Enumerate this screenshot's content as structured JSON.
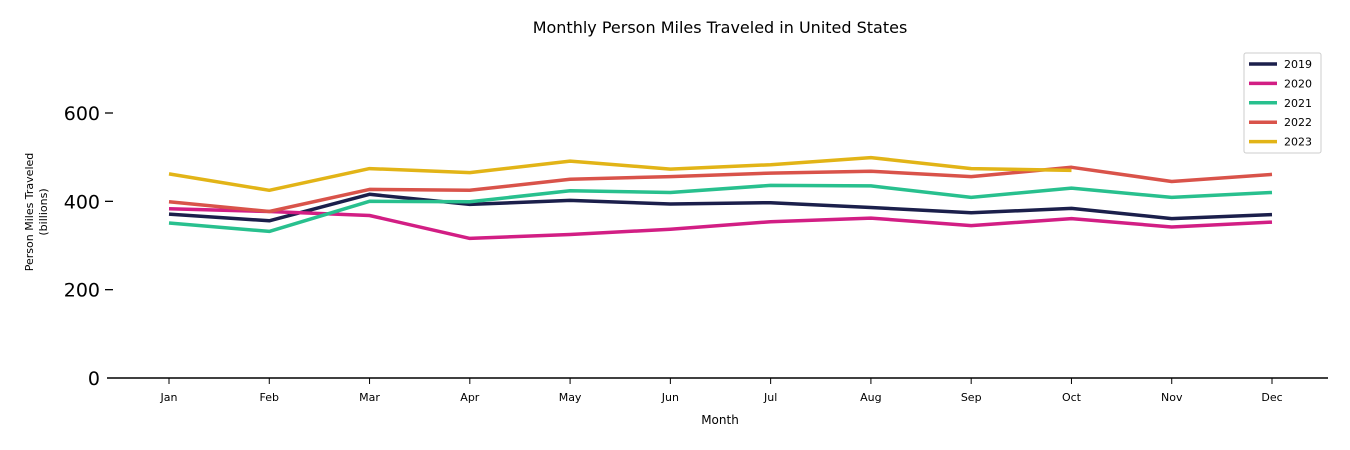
{
  "chart_data": {
    "type": "line",
    "title": "Monthly Person Miles Traveled in United States",
    "xlabel": "Month",
    "ylabel_lines": [
      "Person Miles Traveled",
      "(billions)"
    ],
    "categories": [
      "Jan",
      "Feb",
      "Mar",
      "Apr",
      "May",
      "Jun",
      "Jul",
      "Aug",
      "Sep",
      "Oct",
      "Nov",
      "Dec"
    ],
    "yticks": [
      0,
      200,
      400,
      600
    ],
    "ylim": [
      0,
      750
    ],
    "grid": false,
    "legend_position": "top-right",
    "series": [
      {
        "name": "2019",
        "color": "#1b1f4b",
        "values": [
          371,
          356,
          416,
          393,
          402,
          394,
          397,
          386,
          374,
          384,
          361,
          370
        ]
      },
      {
        "name": "2020",
        "color": "#d21e84",
        "values": [
          383,
          377,
          368,
          316,
          325,
          337,
          354,
          362,
          345,
          361,
          342,
          353
        ]
      },
      {
        "name": "2021",
        "color": "#28c08e",
        "values": [
          351,
          332,
          400,
          399,
          424,
          420,
          436,
          435,
          409,
          430,
          409,
          420
        ]
      },
      {
        "name": "2022",
        "color": "#d9534a",
        "values": [
          399,
          377,
          427,
          425,
          450,
          456,
          464,
          468,
          456,
          477,
          445,
          461
        ]
      },
      {
        "name": "2023",
        "color": "#e2b417",
        "values": [
          462,
          425,
          474,
          465,
          491,
          473,
          483,
          499,
          474,
          470,
          null,
          null
        ]
      }
    ]
  }
}
